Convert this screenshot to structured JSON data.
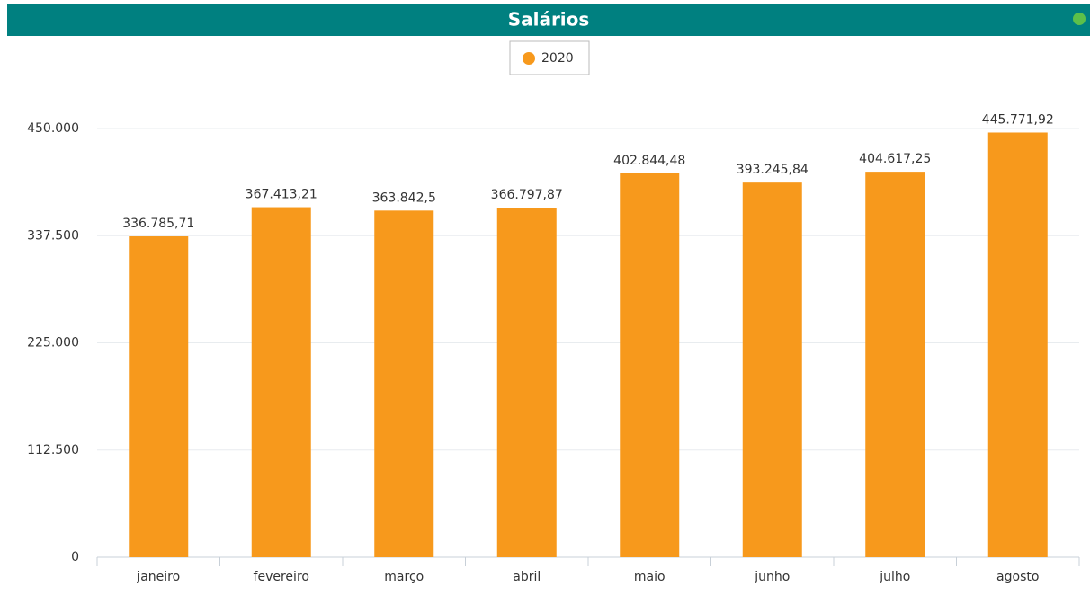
{
  "chart_data": {
    "type": "bar",
    "title": "Salários",
    "categories": [
      "janeiro",
      "fevereiro",
      "março",
      "abril",
      "maio",
      "junho",
      "julho",
      "agosto"
    ],
    "series": [
      {
        "name": "2020",
        "color": "#f7991c",
        "values": [
          336785.71,
          367413.21,
          363842.5,
          366797.87,
          402844.48,
          393245.84,
          404617.25,
          445771.92
        ],
        "value_labels": [
          "336.785,71",
          "367.413,21",
          "363.842,5",
          "366.797,87",
          "402.844,48",
          "393.245,84",
          "404.617,25",
          "445.771,92"
        ]
      }
    ],
    "ylim": [
      0,
      450000
    ],
    "yticks": [
      0,
      {
        "value": 112500,
        "label": "112.500"
      },
      {
        "value": 225000,
        "label": "225.000"
      },
      {
        "value": 337500,
        "label": "337.500"
      },
      {
        "value": 450000,
        "label": "450.000"
      }
    ],
    "grid": true,
    "legend": "top"
  }
}
